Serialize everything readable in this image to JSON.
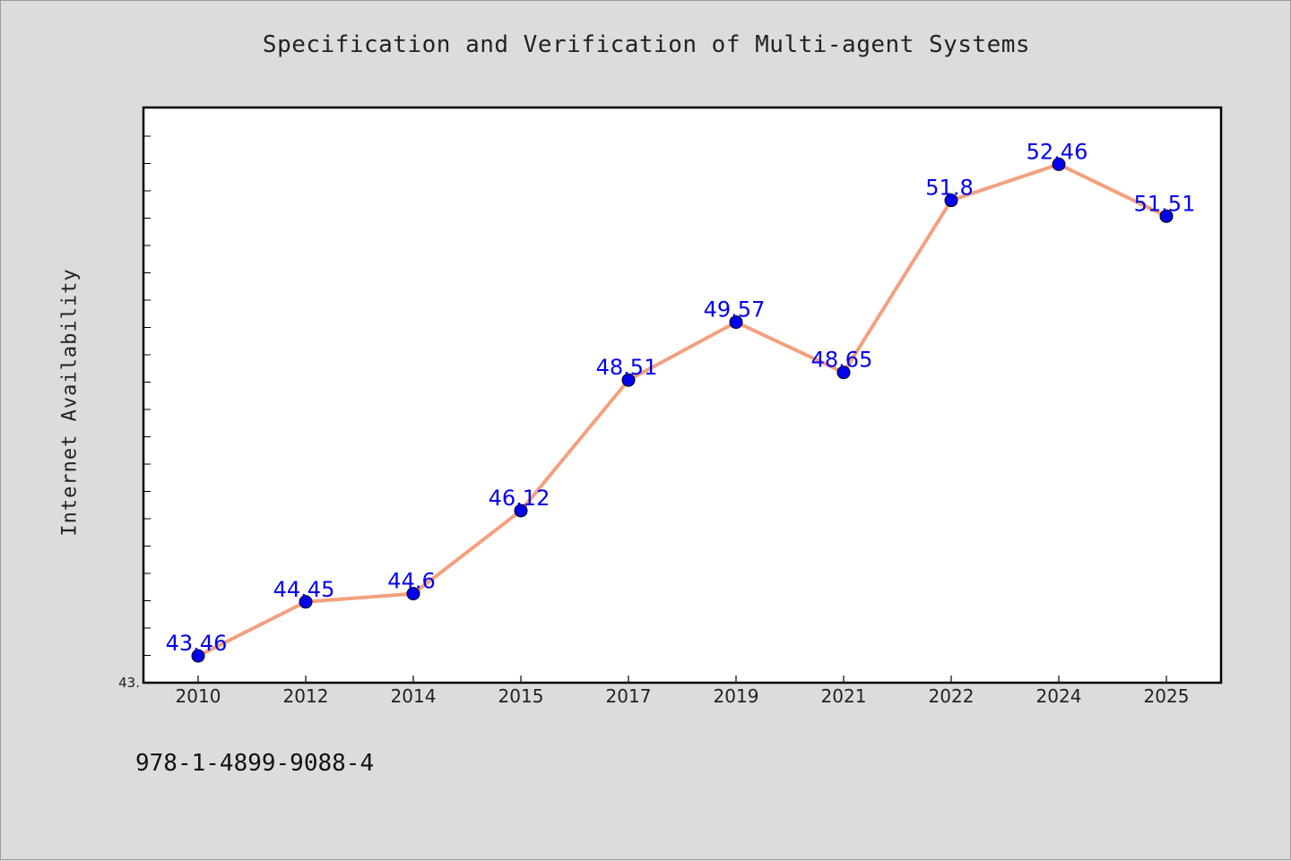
{
  "footer": {
    "id_text": "978-1-4899-9088-4"
  },
  "chart_data": {
    "type": "line",
    "title": "Specification and Verification of Multi-agent Systems",
    "xlabel": "",
    "ylabel": "Internet Availability",
    "categories": [
      "2010",
      "2012",
      "2014",
      "2015",
      "2017",
      "2019",
      "2021",
      "2022",
      "2024",
      "2025"
    ],
    "series": [
      {
        "values": [
          43.46,
          44.45,
          44.6,
          46.12,
          48.51,
          49.57,
          48.65,
          51.8,
          52.46,
          51.51
        ],
        "labels": [
          "43.46",
          "44.45",
          "44.6",
          "46.12",
          "48.51",
          "49.57",
          "48.65",
          "51.8",
          "52.46",
          "51.51"
        ],
        "line_color": "#f4a07e",
        "marker_color": "#0000ee"
      }
    ],
    "ylim": [
      42.97,
      53.5
    ],
    "y_tick_labels": [
      "43."
    ],
    "grid": false,
    "legend": "none"
  }
}
